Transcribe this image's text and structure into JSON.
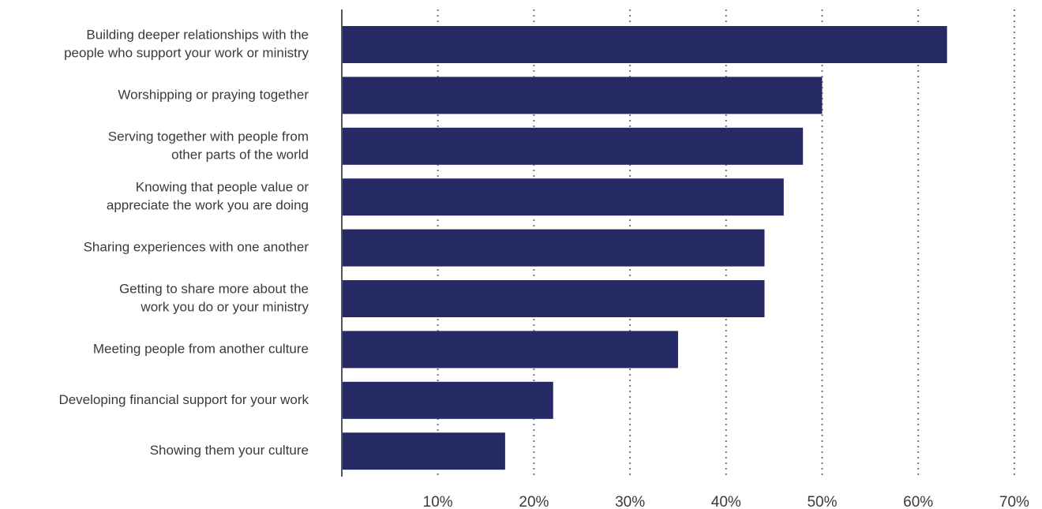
{
  "chart_data": {
    "type": "bar",
    "orientation": "horizontal",
    "title": "",
    "xlabel": "",
    "ylabel": "",
    "categories": [
      [
        "Building deeper relationships with the",
        "people who support your work or ministry"
      ],
      [
        "Worshipping or praying together"
      ],
      [
        "Serving together with people from",
        "other parts of the world"
      ],
      [
        "Knowing that people value or",
        "appreciate the work you are doing"
      ],
      [
        "Sharing experiences with one another"
      ],
      [
        "Getting to share more about the",
        "work you do or your ministry"
      ],
      [
        "Meeting people from another culture"
      ],
      [
        "Developing financial support for your work"
      ],
      [
        "Showing them your culture"
      ]
    ],
    "values": [
      63,
      50,
      48,
      46,
      44,
      44,
      35,
      22,
      17
    ],
    "xlim": [
      0,
      70
    ],
    "xticks": [
      10,
      20,
      30,
      40,
      50,
      60,
      70
    ],
    "xtick_labels": [
      "10%",
      "20%",
      "30%",
      "40%",
      "50%",
      "60%",
      "70%"
    ],
    "grid": "vertical dotted",
    "bar_color": "#262a64",
    "grid_color": "#777777",
    "axis_color": "#555555",
    "text_color": "#3a3a3a"
  }
}
